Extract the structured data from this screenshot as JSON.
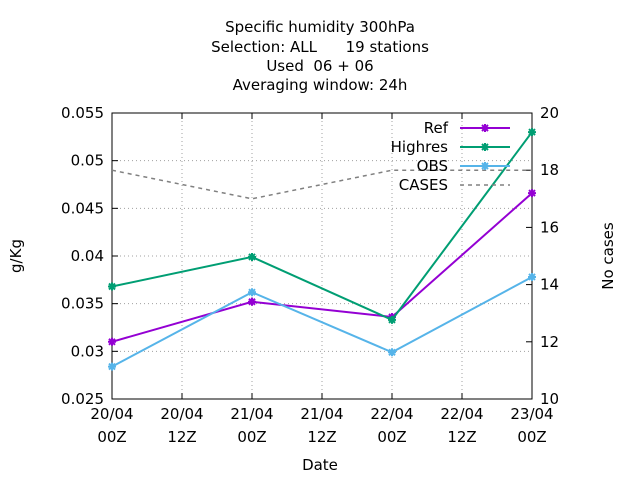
{
  "chart_data": {
    "type": "line",
    "title_lines": [
      "Specific humidity 300hPa",
      "Selection: ALL      19 stations",
      "Used  06 + 06",
      "Averaging window: 24h"
    ],
    "xlabel": "Date",
    "ylabel": "g/Kg",
    "y2label": "No cases",
    "x_ticks": [
      {
        "l1": "20/04",
        "l2": "00Z"
      },
      {
        "l1": "20/04",
        "l2": "12Z"
      },
      {
        "l1": "21/04",
        "l2": "00Z"
      },
      {
        "l1": "21/04",
        "l2": "12Z"
      },
      {
        "l1": "22/04",
        "l2": "00Z"
      },
      {
        "l1": "22/04",
        "l2": "12Z"
      },
      {
        "l1": "23/04",
        "l2": "00Z"
      }
    ],
    "y_ticks": [
      "0.025",
      "0.03",
      "0.035",
      "0.04",
      "0.045",
      "0.05",
      "0.055"
    ],
    "y2_ticks": [
      "10",
      "12",
      "14",
      "16",
      "18",
      "20"
    ],
    "ylim": [
      0.025,
      0.055
    ],
    "y2lim": [
      10,
      20
    ],
    "grid": true,
    "legend_position": "top-right",
    "series": [
      {
        "name": "Ref",
        "color": "#9400d3",
        "dashed": false,
        "axis": "y",
        "x": [
          0,
          2,
          4,
          6
        ],
        "values": [
          0.031,
          0.0352,
          0.0336,
          0.0466
        ]
      },
      {
        "name": "Highres",
        "color": "#009e73",
        "dashed": false,
        "axis": "y",
        "x": [
          0,
          2,
          4,
          6
        ],
        "values": [
          0.0368,
          0.0399,
          0.0333,
          0.053
        ]
      },
      {
        "name": "OBS",
        "color": "#56b4e9",
        "dashed": false,
        "axis": "y",
        "x": [
          0,
          2,
          4,
          6
        ],
        "values": [
          0.0284,
          0.0362,
          0.0299,
          0.0378
        ]
      },
      {
        "name": "CASES",
        "color": "#808080",
        "dashed": true,
        "axis": "y2",
        "x": [
          0,
          2,
          4,
          6
        ],
        "values": [
          18,
          17,
          18,
          18
        ]
      }
    ]
  }
}
